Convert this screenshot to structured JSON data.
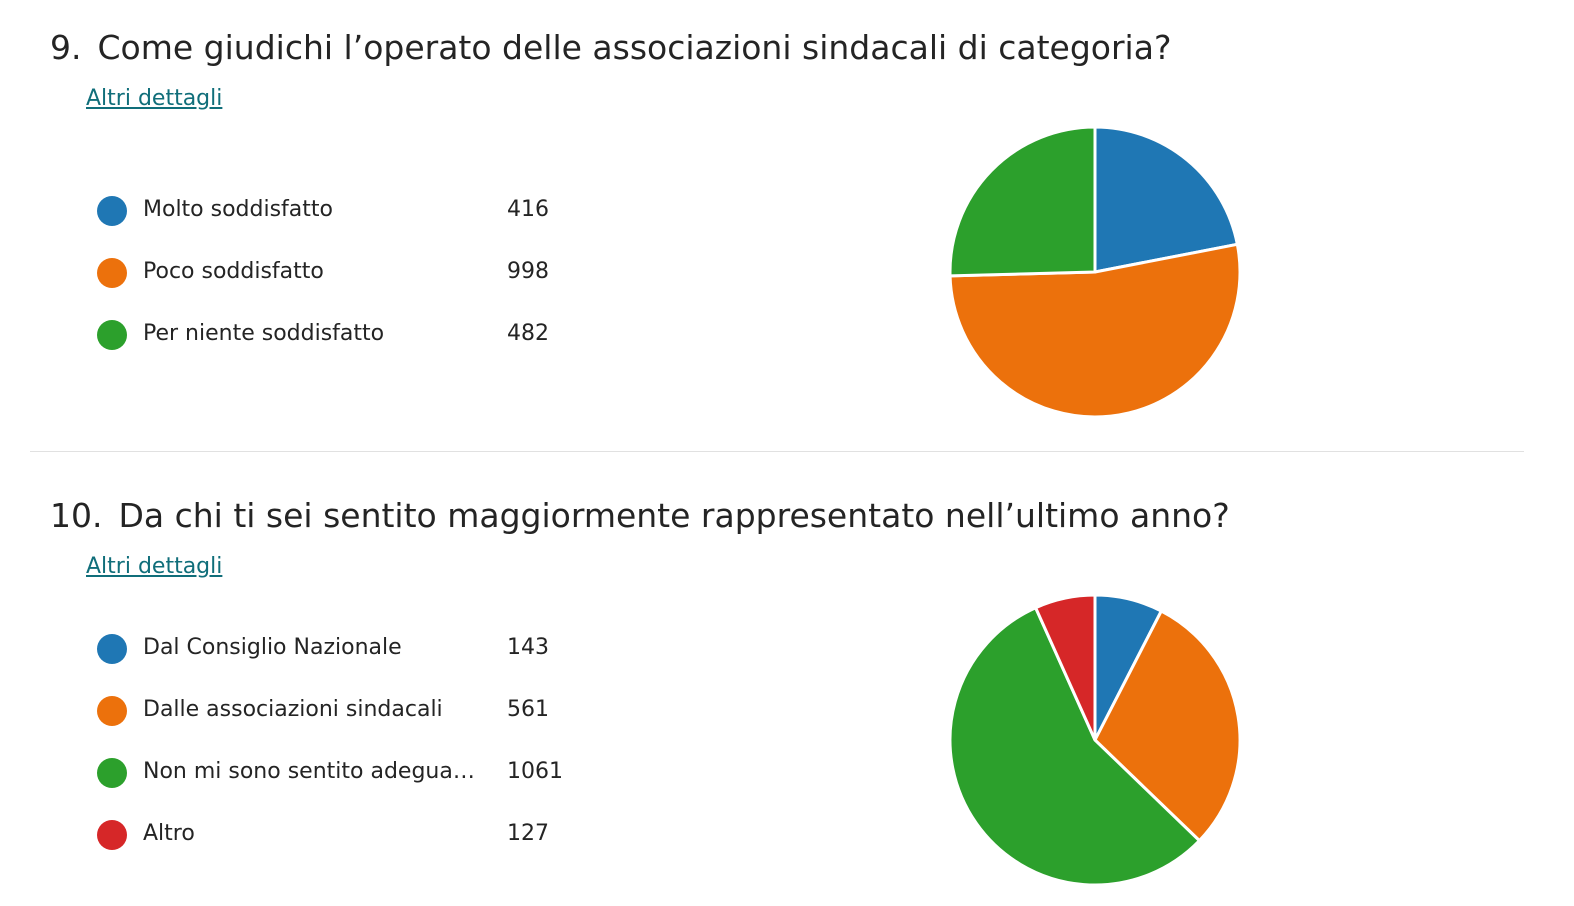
{
  "chart_data": [
    {
      "type": "pie",
      "number": "9.",
      "title": "Come giudichi l’operato delle associazioni sindacali di categoria?",
      "details_link": "Altri dettagli",
      "categories": [
        "Molto soddisfatto",
        "Poco soddisfatto",
        "Per niente soddisfatto"
      ],
      "values": [
        416,
        998,
        482
      ],
      "value_labels": [
        "416",
        "998",
        "482"
      ],
      "colors": [
        "#1f77b4",
        "#ec710c",
        "#2ca02c"
      ],
      "legend": "left"
    },
    {
      "type": "pie",
      "number": "10.",
      "title": "Da chi ti sei sentito maggiormente rappresentato nell’ultimo anno?",
      "details_link": "Altri dettagli",
      "categories": [
        "Dal Consiglio Nazionale",
        "Dalle associazioni sindacali",
        "Non mi sono sentito adeguata…",
        "Altro"
      ],
      "values": [
        143,
        561,
        1061,
        127
      ],
      "value_labels": [
        "143",
        "561",
        "1061",
        "127"
      ],
      "colors": [
        "#1f77b4",
        "#ec710c",
        "#2ca02c",
        "#d62728"
      ],
      "legend": "left"
    }
  ]
}
